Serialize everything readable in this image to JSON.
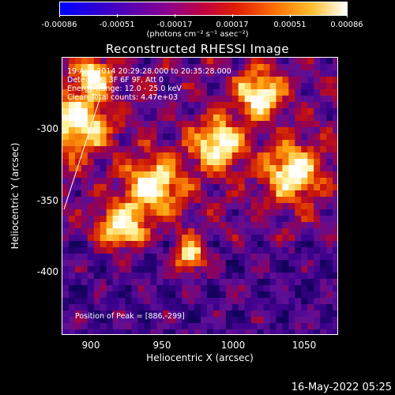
{
  "colorbar": {
    "ticks": [
      "-0.00086",
      "-0.00051",
      "-0.00017",
      "0.00017",
      "0.00051",
      "0.00086"
    ],
    "unit": "(photons cm⁻² s⁻¹ asec⁻²)",
    "colors": [
      "#0000ff",
      "#5a00b0",
      "#c00040",
      "#ff7000",
      "#ffffff"
    ]
  },
  "title": "Reconstructed RHESSI Image",
  "info": {
    "time": "19-Aug-2014 20:29:28.000 to 20:35:28.000",
    "detectors": "Detectors: 3F 6F 9F, Att 0",
    "energy": "Energy Range: 12.0 - 25.0 keV",
    "clean": "Clean    Total counts: 4.47e+03",
    "peak": "Position of Peak = [886,-299]"
  },
  "axes": {
    "xlabel": "Heliocentric X (arcsec)",
    "ylabel": "Heliocentric Y (arcsec)",
    "xticks": [
      "900",
      "950",
      "1000",
      "1050"
    ],
    "yticks": [
      "-300",
      "-350",
      "-400"
    ]
  },
  "timestamp": "16-May-2022 05:25"
}
